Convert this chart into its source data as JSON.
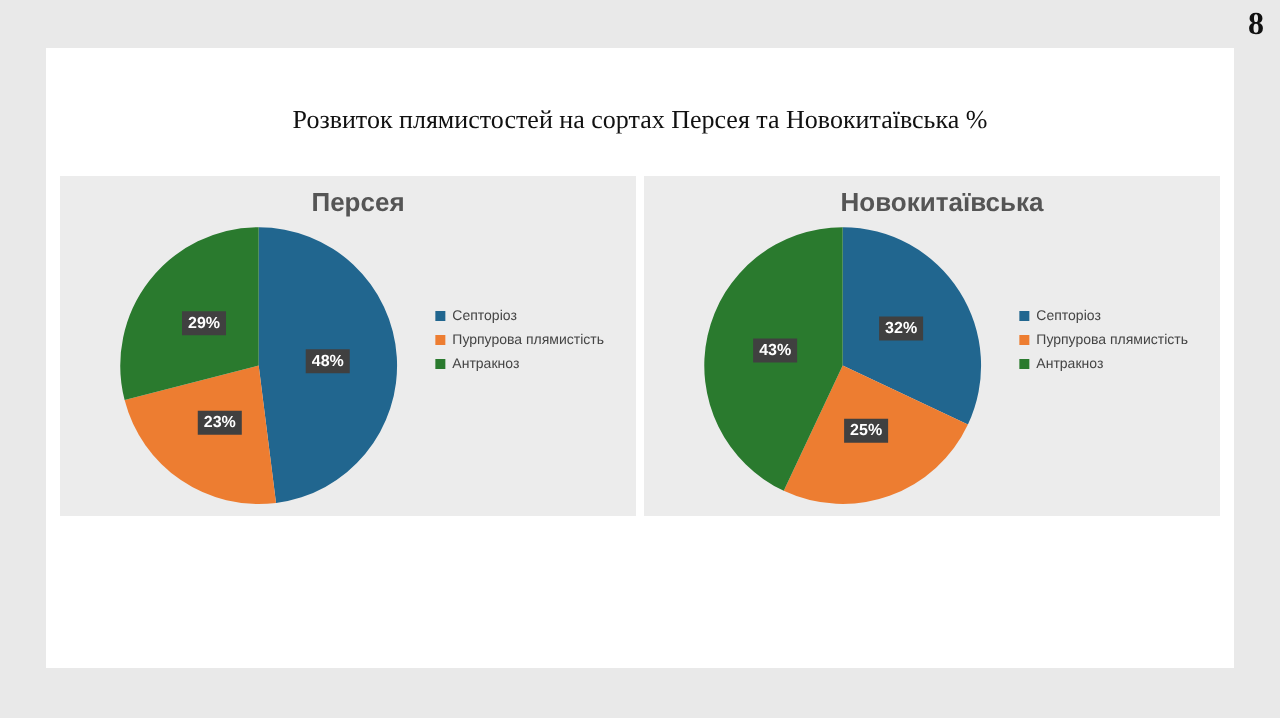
{
  "chart_data": [
    {
      "type": "other",
      "title": "Розвиток плямистостей на сортах Персея та Новокитаївська %",
      "annotations": [
        "8"
      ]
    },
    {
      "type": "pie",
      "title": "Персея",
      "categories": [
        "Септоріоз",
        "Пурпурова плямистість",
        "Антракноз"
      ],
      "values": [
        48,
        23,
        29
      ],
      "colors": [
        "#21668f",
        "#ed7d31",
        "#2a7a2e"
      ],
      "value_labels": [
        "48%",
        "23%",
        "29%"
      ],
      "legend": "right"
    },
    {
      "type": "pie",
      "title": "Новокитаївська",
      "categories": [
        "Септоріоз",
        "Пурпурова плямистість",
        "Антракноз"
      ],
      "values": [
        32,
        25,
        43
      ],
      "colors": [
        "#21668f",
        "#ed7d31",
        "#2a7a2e"
      ],
      "value_labels": [
        "32%",
        "25%",
        "43%"
      ],
      "legend": "right"
    }
  ]
}
